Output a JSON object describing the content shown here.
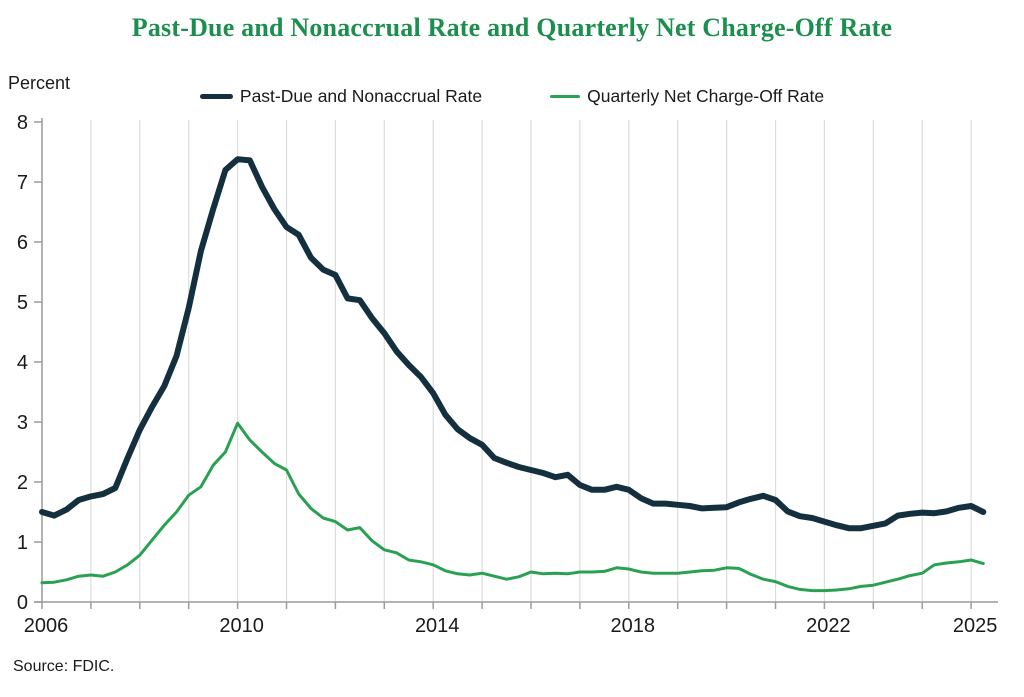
{
  "title": "Past-Due and Nonaccrual Rate and Quarterly Net Charge-Off Rate",
  "title_color": "#1c8f4e",
  "axis": {
    "y_label": "Percent"
  },
  "source": "Source: FDIC.",
  "legend": {
    "items": [
      {
        "label": "Past-Due and Nonaccrual Rate",
        "color": "#14303f"
      },
      {
        "label": "Quarterly Net Charge-Off Rate",
        "color": "#2aa152"
      }
    ]
  },
  "chart_data": {
    "type": "line",
    "title": "Past-Due and Nonaccrual Rate and Quarterly Net Charge-Off Rate",
    "ylabel": "Percent",
    "xlabel": "",
    "x_frequency": "quarterly",
    "x_start": "2006Q1",
    "x_end": "2025Q2",
    "x_year_range": [
      2006,
      2025
    ],
    "x_tick_labels": [
      "2006",
      "2010",
      "2014",
      "2018",
      "2022",
      "2025"
    ],
    "x_tick_years": [
      2006,
      2010,
      2014,
      2018,
      2022,
      2025
    ],
    "ylim": [
      0,
      8
    ],
    "y_ticks": [
      0,
      1,
      2,
      3,
      4,
      5,
      6,
      7,
      8
    ],
    "grid": "vertical-yearly",
    "legend_position": "top-center",
    "gridline_color": "#dcdcdc",
    "axis_color": "#9c9c9c",
    "text_color": "#1a1a1a",
    "series": [
      {
        "name": "Past-Due and Nonaccrual Rate",
        "color": "#14303f",
        "stroke_width": 6,
        "values": [
          1.5,
          1.44,
          1.54,
          1.7,
          1.76,
          1.8,
          1.9,
          2.4,
          2.87,
          3.25,
          3.6,
          4.1,
          4.9,
          5.85,
          6.55,
          7.2,
          7.38,
          7.36,
          6.92,
          6.55,
          6.25,
          6.12,
          5.74,
          5.54,
          5.45,
          5.06,
          5.03,
          4.73,
          4.48,
          4.18,
          3.95,
          3.75,
          3.48,
          3.12,
          2.88,
          2.73,
          2.62,
          2.4,
          2.32,
          2.25,
          2.2,
          2.15,
          2.08,
          2.12,
          1.95,
          1.87,
          1.87,
          1.92,
          1.87,
          1.73,
          1.64,
          1.64,
          1.62,
          1.6,
          1.56,
          1.57,
          1.58,
          1.66,
          1.72,
          1.77,
          1.7,
          1.51,
          1.43,
          1.4,
          1.34,
          1.28,
          1.23,
          1.23,
          1.27,
          1.31,
          1.44,
          1.47,
          1.49,
          1.48,
          1.51,
          1.57,
          1.6,
          1.5
        ]
      },
      {
        "name": "Quarterly Net Charge-Off Rate",
        "color": "#2aa152",
        "stroke_width": 3,
        "values": [
          0.32,
          0.33,
          0.37,
          0.43,
          0.45,
          0.43,
          0.5,
          0.62,
          0.78,
          1.03,
          1.28,
          1.5,
          1.78,
          1.92,
          2.28,
          2.5,
          2.98,
          2.7,
          2.5,
          2.31,
          2.2,
          1.8,
          1.56,
          1.4,
          1.34,
          1.2,
          1.24,
          1.02,
          0.87,
          0.82,
          0.7,
          0.67,
          0.62,
          0.52,
          0.47,
          0.45,
          0.48,
          0.43,
          0.38,
          0.42,
          0.5,
          0.47,
          0.48,
          0.47,
          0.5,
          0.5,
          0.51,
          0.57,
          0.55,
          0.5,
          0.48,
          0.48,
          0.48,
          0.5,
          0.52,
          0.53,
          0.57,
          0.56,
          0.46,
          0.38,
          0.34,
          0.26,
          0.21,
          0.19,
          0.19,
          0.2,
          0.22,
          0.26,
          0.28,
          0.33,
          0.38,
          0.44,
          0.48,
          0.62,
          0.65,
          0.67,
          0.7,
          0.64
        ]
      }
    ]
  }
}
